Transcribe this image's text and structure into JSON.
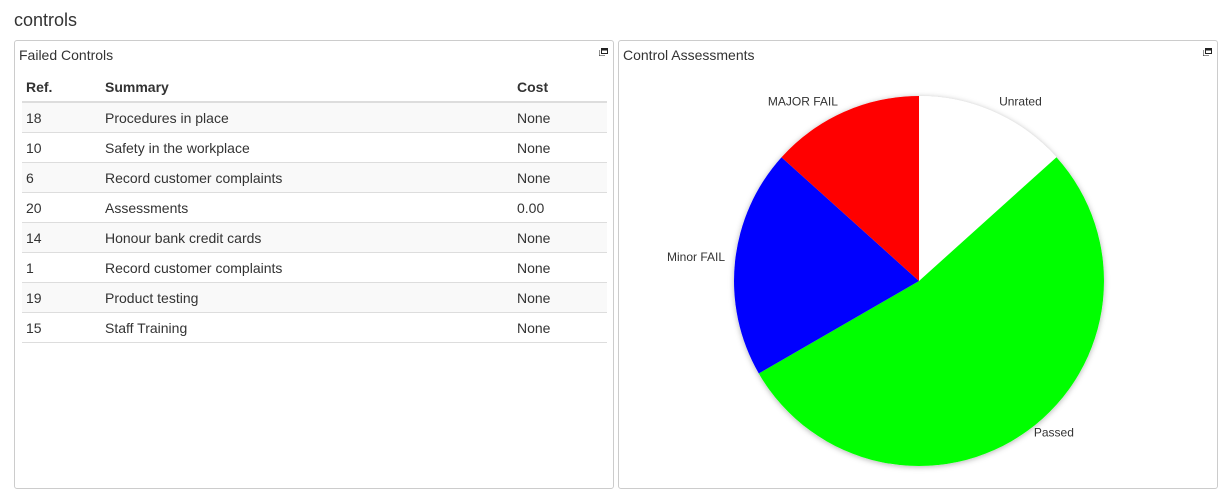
{
  "page_title": "controls",
  "failed_controls": {
    "title": "Failed Controls",
    "icon": "popout-icon",
    "columns": [
      "Ref.",
      "Summary",
      "Cost"
    ],
    "rows": [
      [
        "18",
        "Procedures in place",
        "None"
      ],
      [
        "10",
        "Safety in the workplace",
        "None"
      ],
      [
        "6",
        "Record customer complaints",
        "None"
      ],
      [
        "20",
        "Assessments",
        "0.00"
      ],
      [
        "14",
        "Honour bank credit cards",
        "None"
      ],
      [
        "1",
        "Record customer complaints",
        "None"
      ],
      [
        "19",
        "Product testing",
        "None"
      ],
      [
        "15",
        "Staff Training",
        "None"
      ]
    ]
  },
  "assessments": {
    "title": "Control Assessments",
    "icon": "popout-icon"
  },
  "chart_data": {
    "type": "pie",
    "title": "",
    "slices": [
      {
        "label": "Unrated",
        "value": 2,
        "color": "#ffffff"
      },
      {
        "label": "Passed",
        "value": 8,
        "color": "#00ff00"
      },
      {
        "label": "Minor FAIL",
        "value": 3,
        "color": "#0000ff"
      },
      {
        "label": "MAJOR FAIL",
        "value": 2,
        "color": "#ff0000"
      }
    ],
    "start": "top",
    "direction": "clockwise",
    "legend": "none"
  }
}
